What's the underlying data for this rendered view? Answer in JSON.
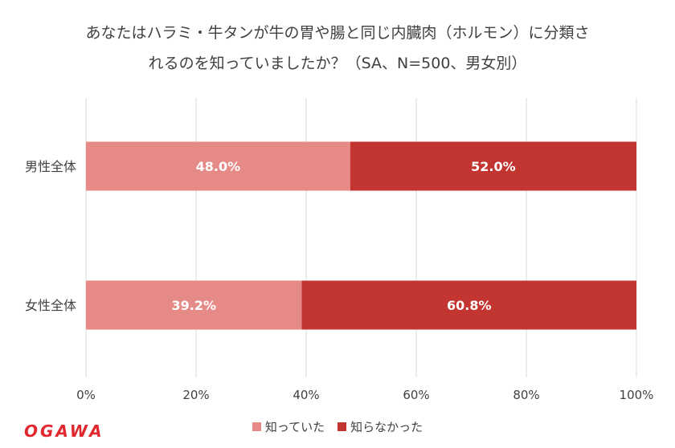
{
  "title_lines": [
    "あなたはハラミ・牛タンが牛の胃や腸と同じ内臓肉（ホルモン）に分類さ",
    "れるのを知っていましたか？（SA、N=500、男女別）"
  ],
  "logo_text": "OGAWA",
  "colors": {
    "knew": "#e58a86",
    "didnt_know": "#c23530",
    "grid": "#d9d9d9"
  },
  "chart_data": {
    "type": "bar",
    "orientation": "horizontal",
    "stacked": "percent",
    "title": "あなたはハラミ・牛タンが牛の胃や腸と同じ内臓肉（ホルモン）に分類されるのを知っていましたか？（SA、N=500、男女別）",
    "categories": [
      "男性全体",
      "女性全体"
    ],
    "series": [
      {
        "name": "知っていた",
        "values": [
          48.0,
          39.2
        ],
        "labels": [
          "48.0%",
          "39.2%"
        ]
      },
      {
        "name": "知らなかった",
        "values": [
          52.0,
          60.8
        ],
        "labels": [
          "52.0%",
          "60.8%"
        ]
      }
    ],
    "xlim": [
      0,
      100
    ],
    "xticks": [
      "0%",
      "20%",
      "40%",
      "60%",
      "80%",
      "100%"
    ],
    "grid": true,
    "legend_position": "bottom"
  }
}
